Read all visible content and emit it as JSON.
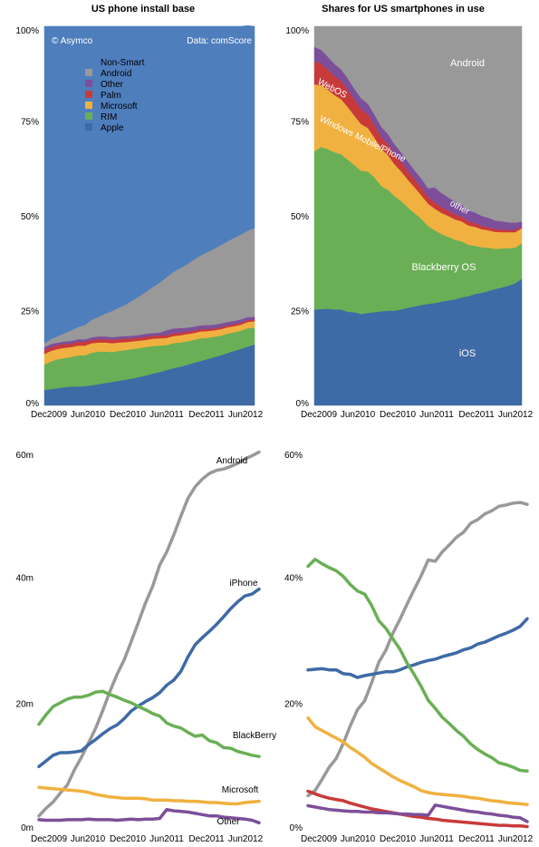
{
  "charts": {
    "install_base": {
      "title": "US phone install base",
      "credit_left": "© Asymco",
      "credit_right": "Data: comScore",
      "legend": [
        "Non-Smart",
        "Android",
        "Other",
        "Palm",
        "Microsoft",
        "RIM",
        "Apple"
      ]
    },
    "shares": {
      "title": "Shares for US smartphones in use",
      "labels": [
        "Android",
        "WebOS",
        "Windows Mobile/Phone",
        "other",
        "Blackberry OS",
        "iOS"
      ]
    },
    "units": {
      "labels": [
        "Android",
        "iPhone",
        "BlackBerry",
        "Microsoft",
        "Other"
      ]
    },
    "share_lines": {}
  },
  "colors": {
    "Non-Smart": "#4f7ebd",
    "Android": "#999999",
    "Other": "#7d4f9a",
    "Palm": "#c83a3a",
    "Microsoft": "#f0b140",
    "RIM": "#6aaf55",
    "Apple": "#3e6aa6"
  },
  "chart_data": [
    {
      "type": "area",
      "title": "US phone install base",
      "x_ticks": [
        "Dec2009",
        "Jun2010",
        "Dec2010",
        "Jun2011",
        "Dec2011",
        "Jun2012"
      ],
      "y_ticks": [
        "0%",
        "25%",
        "50%",
        "75%",
        "100%"
      ],
      "ylim": [
        0,
        100
      ],
      "stacked": true,
      "n_points": 32,
      "series": [
        {
          "name": "Apple",
          "values": [
            4.1,
            4.3,
            4.6,
            4.8,
            5.0,
            5.0,
            5.1,
            5.3,
            5.6,
            5.9,
            6.2,
            6.5,
            6.8,
            7.1,
            7.5,
            7.9,
            8.4,
            8.8,
            9.3,
            9.8,
            10.2,
            10.7,
            11.2,
            11.7,
            12.2,
            12.7,
            13.2,
            13.8,
            14.4,
            14.9,
            15.5,
            16.1
          ]
        },
        {
          "name": "RIM",
          "values": [
            6.7,
            7.3,
            7.6,
            7.7,
            7.8,
            8.2,
            8.1,
            8.6,
            8.6,
            8.3,
            7.9,
            7.9,
            7.8,
            7.8,
            7.6,
            7.5,
            7.3,
            7.0,
            6.6,
            6.6,
            6.4,
            6.2,
            6.1,
            6.0,
            5.6,
            5.4,
            5.2,
            5.1,
            4.9,
            4.8,
            4.9,
            4.4
          ]
        },
        {
          "name": "Microsoft",
          "values": [
            2.8,
            2.8,
            2.7,
            2.7,
            2.6,
            2.6,
            2.6,
            2.5,
            2.4,
            2.4,
            2.3,
            2.2,
            2.1,
            2.0,
            2.0,
            1.9,
            1.9,
            1.9,
            1.9,
            1.9,
            1.9,
            1.9,
            1.8,
            1.8,
            1.8,
            1.7,
            1.7,
            1.7,
            1.6,
            1.6,
            1.6,
            1.7
          ]
        },
        {
          "name": "Palm",
          "values": [
            1.0,
            1.0,
            1.0,
            1.0,
            0.9,
            1.0,
            1.0,
            0.9,
            0.9,
            0.9,
            0.9,
            0.9,
            0.9,
            0.8,
            0.8,
            0.8,
            0.8,
            0.8,
            0.7,
            0.7,
            0.7,
            0.6,
            0.6,
            0.6,
            0.6,
            0.5,
            0.5,
            0.5,
            0.5,
            0.5,
            0.5,
            0.4
          ]
        },
        {
          "name": "Other",
          "values": [
            0.8,
            0.8,
            0.7,
            0.7,
            0.7,
            0.7,
            0.6,
            0.7,
            0.7,
            0.7,
            0.7,
            0.7,
            0.7,
            0.7,
            0.7,
            0.8,
            0.7,
            0.7,
            1.3,
            1.3,
            1.2,
            1.1,
            1.1,
            1.0,
            1.0,
            1.0,
            1.0,
            0.9,
            0.9,
            0.9,
            0.8,
            0.8
          ]
        },
        {
          "name": "Android",
          "values": [
            1.0,
            1.3,
            1.7,
            2.2,
            2.8,
            3.2,
            3.9,
            4.6,
            5.2,
            6.0,
            6.9,
            7.6,
            8.3,
            9.3,
            10.2,
            11.1,
            12.1,
            13.2,
            14.0,
            14.9,
            15.8,
            16.7,
            17.6,
            18.4,
            19.2,
            20.0,
            20.7,
            21.3,
            21.9,
            22.4,
            22.8,
            23.4
          ]
        },
        {
          "name": "Non-Smart",
          "values": [
            83.6,
            82.5,
            81.7,
            80.9,
            80.2,
            79.3,
            78.7,
            77.4,
            76.6,
            75.8,
            75.1,
            74.2,
            73.4,
            72.3,
            71.2,
            70.0,
            68.8,
            67.6,
            66.2,
            64.8,
            63.8,
            62.8,
            61.6,
            60.5,
            59.6,
            58.7,
            57.7,
            56.7,
            55.8,
            54.9,
            54.1,
            53.2
          ]
        }
      ]
    },
    {
      "type": "area",
      "title": "Shares for US smartphones in use",
      "x_ticks": [
        "Dec2009",
        "Jun2010",
        "Dec2010",
        "Jun2011",
        "Dec2011",
        "Jun2012"
      ],
      "y_ticks": [
        "0%",
        "25%",
        "50%",
        "75%",
        "100%"
      ],
      "ylim": [
        0,
        100
      ],
      "stacked": true,
      "n_points": 32,
      "series": [
        {
          "name": "iOS",
          "values": [
            25.3,
            25.4,
            25.5,
            25.3,
            25.3,
            24.7,
            24.6,
            24.1,
            24.4,
            24.6,
            24.8,
            25.0,
            25.0,
            25.3,
            25.8,
            26.1,
            26.5,
            26.8,
            27.0,
            27.4,
            27.7,
            28.0,
            28.5,
            28.8,
            29.4,
            29.7,
            30.2,
            30.7,
            31.1,
            31.6,
            32.2,
            33.4
          ]
        },
        {
          "name": "Blackberry OS",
          "values": [
            41.7,
            42.8,
            42.1,
            41.5,
            41.0,
            40.1,
            38.8,
            37.8,
            37.3,
            35.5,
            33.1,
            31.9,
            30.2,
            28.6,
            26.4,
            24.6,
            22.7,
            20.5,
            19.2,
            17.8,
            16.8,
            15.7,
            14.8,
            13.6,
            12.7,
            12.0,
            11.4,
            10.6,
            10.3,
            9.9,
            9.4,
            9.3
          ]
        },
        {
          "name": "Windows Mobile/Phone",
          "values": [
            17.7,
            16.3,
            15.7,
            15.1,
            14.5,
            13.9,
            13.0,
            12.3,
            11.5,
            10.5,
            9.8,
            9.1,
            8.4,
            7.8,
            7.3,
            6.8,
            6.2,
            5.9,
            5.7,
            5.6,
            5.5,
            5.4,
            5.3,
            5.1,
            5.0,
            4.8,
            4.6,
            4.5,
            4.3,
            4.2,
            4.1,
            4.0
          ]
        },
        {
          "name": "WebOS",
          "values": [
            6.1,
            5.7,
            5.3,
            5.0,
            4.8,
            4.6,
            4.2,
            3.9,
            3.6,
            3.3,
            3.1,
            2.9,
            2.7,
            2.5,
            2.3,
            2.1,
            2.0,
            1.8,
            1.7,
            1.5,
            1.4,
            1.3,
            1.2,
            1.1,
            1.0,
            0.9,
            0.8,
            0.7,
            0.7,
            0.6,
            0.6,
            0.5
          ]
        },
        {
          "name": "other",
          "values": [
            3.8,
            3.6,
            3.4,
            3.2,
            3.1,
            3.0,
            2.9,
            2.9,
            2.8,
            2.8,
            2.7,
            2.7,
            2.6,
            2.5,
            2.5,
            2.4,
            2.4,
            2.3,
            3.9,
            3.7,
            3.5,
            3.3,
            3.1,
            2.9,
            2.8,
            2.6,
            2.5,
            2.3,
            2.2,
            2.0,
            1.9,
            1.3
          ]
        },
        {
          "name": "Android",
          "values": [
            5.4,
            6.2,
            8.0,
            9.9,
            11.3,
            13.7,
            16.5,
            19.0,
            20.4,
            23.3,
            26.5,
            28.4,
            31.1,
            33.3,
            35.7,
            38.0,
            40.2,
            42.7,
            42.5,
            44.0,
            45.1,
            46.3,
            47.1,
            48.5,
            49.1,
            50.0,
            50.5,
            51.2,
            51.4,
            51.7,
            51.8,
            51.5
          ]
        }
      ]
    },
    {
      "type": "line",
      "x_ticks": [
        "Dec2009",
        "Jun2010",
        "Dec2010",
        "Jun2011",
        "Dec2011",
        "Jun2012"
      ],
      "y_ticks": [
        "0m",
        "20m",
        "40m",
        "60m"
      ],
      "ylim": [
        0,
        60
      ],
      "n_points": 32,
      "series": [
        {
          "name": "Android",
          "values": [
            2.2,
            3.4,
            4.4,
            5.8,
            7.1,
            9.5,
            11.5,
            13.8,
            16.1,
            18.9,
            21.9,
            24.6,
            26.9,
            29.8,
            32.8,
            35.9,
            38.5,
            41.9,
            44.0,
            46.7,
            49.7,
            52.5,
            54.3,
            55.5,
            56.4,
            56.9,
            57.1,
            57.5,
            58.0,
            58.7,
            59.2,
            59.8
          ]
        },
        {
          "name": "iPhone",
          "values": [
            10.0,
            10.9,
            11.8,
            12.2,
            12.2,
            12.3,
            12.5,
            13.5,
            14.3,
            15.2,
            16.0,
            16.6,
            17.6,
            18.8,
            19.6,
            20.3,
            20.9,
            21.7,
            22.9,
            23.7,
            25.1,
            27.4,
            29.3,
            30.4,
            31.4,
            32.5,
            33.7,
            35.0,
            36.1,
            37.0,
            37.3,
            38.1
          ]
        },
        {
          "name": "BlackBerry",
          "values": [
            16.7,
            18.2,
            19.5,
            20.1,
            20.7,
            21.0,
            21.0,
            21.3,
            21.8,
            21.9,
            21.4,
            21.0,
            20.5,
            20.1,
            19.5,
            19.0,
            18.4,
            18.0,
            16.9,
            16.4,
            16.1,
            15.4,
            14.8,
            15.0,
            14.1,
            13.8,
            13.0,
            12.9,
            12.4,
            12.1,
            11.8,
            11.6
          ]
        },
        {
          "name": "Microsoft",
          "values": [
            6.7,
            6.6,
            6.5,
            6.4,
            6.3,
            6.2,
            6.1,
            5.9,
            5.6,
            5.4,
            5.2,
            5.1,
            5.0,
            5.0,
            5.0,
            4.9,
            4.7,
            4.7,
            4.7,
            4.6,
            4.6,
            4.5,
            4.5,
            4.4,
            4.3,
            4.3,
            4.2,
            4.1,
            4.1,
            4.3,
            4.4,
            4.5
          ]
        },
        {
          "name": "Other",
          "values": [
            1.6,
            1.5,
            1.5,
            1.5,
            1.6,
            1.6,
            1.6,
            1.7,
            1.6,
            1.6,
            1.6,
            1.5,
            1.6,
            1.7,
            1.6,
            1.7,
            1.7,
            1.8,
            3.2,
            3.0,
            2.9,
            2.8,
            2.6,
            2.4,
            2.2,
            2.2,
            2.0,
            1.9,
            1.8,
            1.7,
            1.5,
            1.1
          ]
        }
      ]
    },
    {
      "type": "line",
      "x_ticks": [
        "Dec2009",
        "Jun2010",
        "Dec2010",
        "Jun2011",
        "Dec2011",
        "Jun2012"
      ],
      "y_ticks": [
        "0%",
        "20%",
        "40%",
        "60%"
      ],
      "ylim": [
        0,
        60
      ],
      "n_points": 32,
      "series": [
        {
          "name": "Android",
          "values": [
            5.4,
            6.2,
            8.0,
            9.9,
            11.3,
            13.7,
            16.5,
            19.0,
            20.4,
            23.3,
            26.5,
            28.4,
            31.1,
            33.3,
            35.7,
            38.0,
            40.2,
            42.7,
            42.5,
            44.0,
            45.1,
            46.3,
            47.1,
            48.5,
            49.1,
            50.0,
            50.5,
            51.2,
            51.4,
            51.7,
            51.8,
            51.5
          ]
        },
        {
          "name": "iOS",
          "values": [
            25.3,
            25.4,
            25.5,
            25.3,
            25.3,
            24.7,
            24.6,
            24.1,
            24.4,
            24.6,
            24.8,
            25.0,
            25.0,
            25.3,
            25.8,
            26.1,
            26.5,
            26.8,
            27.0,
            27.4,
            27.7,
            28.0,
            28.5,
            28.8,
            29.4,
            29.7,
            30.2,
            30.7,
            31.1,
            31.6,
            32.2,
            33.4
          ]
        },
        {
          "name": "BlackBerry",
          "values": [
            41.7,
            42.8,
            42.1,
            41.5,
            41.0,
            40.1,
            38.8,
            37.8,
            37.3,
            35.5,
            33.1,
            31.9,
            30.2,
            28.6,
            26.4,
            24.6,
            22.7,
            20.5,
            19.2,
            17.8,
            16.8,
            15.7,
            14.8,
            13.6,
            12.7,
            12.0,
            11.4,
            10.6,
            10.3,
            9.9,
            9.4,
            9.3
          ]
        },
        {
          "name": "Microsoft",
          "values": [
            17.7,
            16.3,
            15.7,
            15.1,
            14.5,
            13.9,
            13.0,
            12.3,
            11.5,
            10.5,
            9.8,
            9.1,
            8.4,
            7.8,
            7.3,
            6.8,
            6.2,
            5.9,
            5.7,
            5.6,
            5.5,
            5.4,
            5.3,
            5.1,
            5.0,
            4.8,
            4.6,
            4.5,
            4.3,
            4.2,
            4.1,
            4.0
          ]
        },
        {
          "name": "Palm",
          "values": [
            6.1,
            5.7,
            5.3,
            5.0,
            4.8,
            4.6,
            4.2,
            3.9,
            3.6,
            3.3,
            3.1,
            2.9,
            2.7,
            2.5,
            2.3,
            2.1,
            2.0,
            1.8,
            1.7,
            1.5,
            1.4,
            1.3,
            1.2,
            1.1,
            1.0,
            0.9,
            0.8,
            0.7,
            0.7,
            0.6,
            0.6,
            0.5
          ]
        },
        {
          "name": "Other",
          "values": [
            3.8,
            3.6,
            3.4,
            3.2,
            3.1,
            3.0,
            2.9,
            2.9,
            2.8,
            2.8,
            2.7,
            2.7,
            2.6,
            2.5,
            2.5,
            2.4,
            2.4,
            2.3,
            3.9,
            3.7,
            3.5,
            3.3,
            3.1,
            2.9,
            2.8,
            2.6,
            2.5,
            2.3,
            2.2,
            2.0,
            1.9,
            1.3
          ]
        }
      ]
    }
  ]
}
